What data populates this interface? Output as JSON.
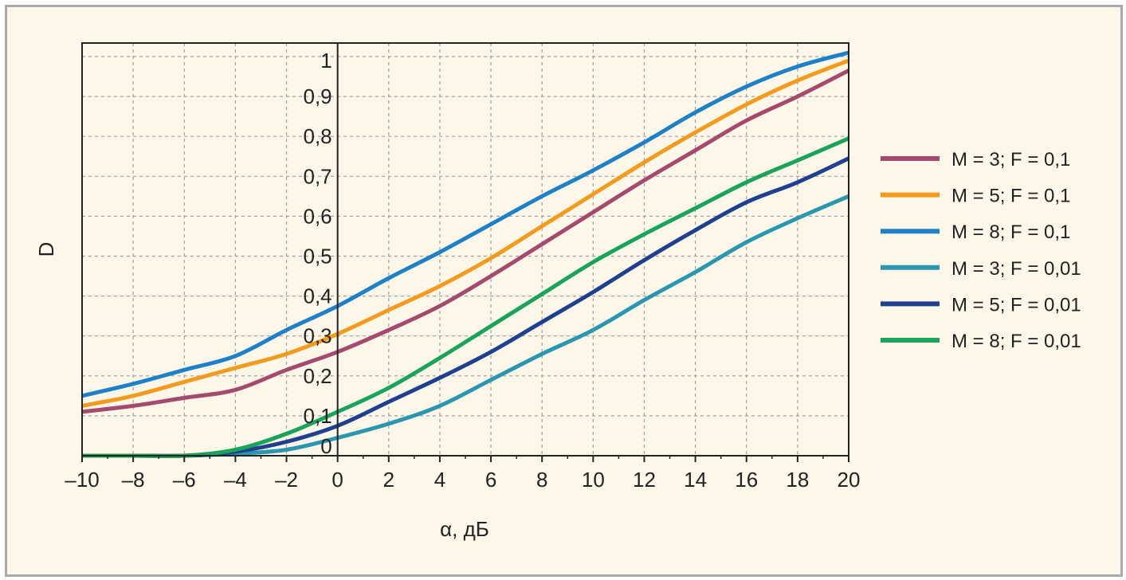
{
  "chart_data": {
    "type": "line",
    "title": "",
    "xlabel": "α, дБ",
    "ylabel": "D",
    "xlim": [
      -10,
      20
    ],
    "ylim": [
      0,
      1
    ],
    "grid": true,
    "legend_position": "right",
    "x_ticks": [
      "–10",
      "–8",
      "–6",
      "–4",
      "–2",
      "0",
      "2",
      "4",
      "6",
      "8",
      "10",
      "12",
      "14",
      "16",
      "18",
      "20"
    ],
    "y_ticks": [
      "0",
      "0,1",
      "0,2",
      "0,3",
      "0,4",
      "0,5",
      "0,6",
      "0,7",
      "0,8",
      "0,9",
      "1"
    ],
    "x": [
      -10,
      -8,
      -6,
      -4,
      -2,
      0,
      2,
      4,
      6,
      8,
      10,
      12,
      14,
      16,
      18,
      20
    ],
    "series": [
      {
        "name": "M = 3; F = 0,1",
        "color": "#a44a6f",
        "values": [
          0.11,
          0.125,
          0.145,
          0.165,
          0.215,
          0.26,
          0.315,
          0.375,
          0.45,
          0.53,
          0.61,
          0.69,
          0.765,
          0.84,
          0.9,
          0.965
        ]
      },
      {
        "name": "M = 5; F = 0,1",
        "color": "#f39b1f",
        "values": [
          0.125,
          0.15,
          0.185,
          0.22,
          0.255,
          0.305,
          0.365,
          0.425,
          0.495,
          0.575,
          0.655,
          0.735,
          0.81,
          0.88,
          0.94,
          0.99
        ]
      },
      {
        "name": "M = 8; F = 0,1",
        "color": "#1e80c6",
        "values": [
          0.15,
          0.18,
          0.215,
          0.25,
          0.315,
          0.375,
          0.445,
          0.51,
          0.58,
          0.65,
          0.715,
          0.785,
          0.86,
          0.925,
          0.975,
          1.01
        ]
      },
      {
        "name": "M = 3; F = 0,01",
        "color": "#2a96b0",
        "values": [
          0.0,
          0.0,
          0.0,
          0.005,
          0.015,
          0.045,
          0.08,
          0.125,
          0.19,
          0.255,
          0.315,
          0.39,
          0.46,
          0.535,
          0.595,
          0.65
        ]
      },
      {
        "name": "M = 5; F = 0,01",
        "color": "#1f3f8f",
        "values": [
          0.0,
          0.0,
          0.0,
          0.01,
          0.035,
          0.075,
          0.135,
          0.195,
          0.26,
          0.335,
          0.41,
          0.49,
          0.565,
          0.635,
          0.685,
          0.745
        ]
      },
      {
        "name": "M = 8; F = 0,01",
        "color": "#1aa35a",
        "values": [
          0.0,
          0.0,
          0.0,
          0.015,
          0.055,
          0.11,
          0.17,
          0.245,
          0.325,
          0.405,
          0.485,
          0.555,
          0.62,
          0.685,
          0.74,
          0.795
        ]
      }
    ]
  }
}
